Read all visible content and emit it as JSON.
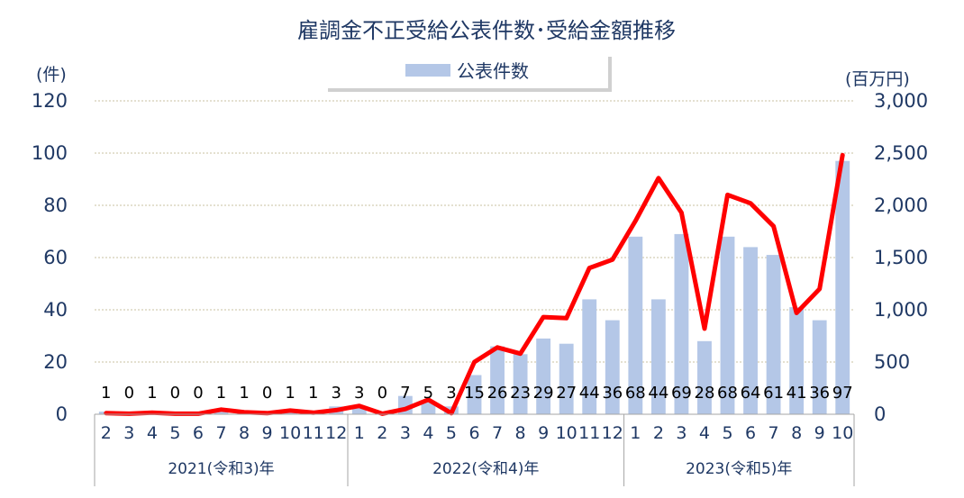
{
  "chart_data": {
    "type": "bar+line",
    "title": "雇調金不正受給公表件数･受給金額推移",
    "left_axis_unit": "(件)",
    "right_axis_unit": "(百万円)",
    "left_ylim": [
      0,
      120
    ],
    "left_ticks": [
      "0",
      "20",
      "40",
      "60",
      "80",
      "100",
      "120"
    ],
    "right_ylim": [
      0,
      3000
    ],
    "right_ticks": [
      "0",
      "500",
      "1,000",
      "1,500",
      "2,000",
      "2,500",
      "3,000"
    ],
    "categories": [
      "2",
      "3",
      "4",
      "5",
      "6",
      "7",
      "8",
      "9",
      "10",
      "11",
      "12",
      "1",
      "2",
      "3",
      "4",
      "5",
      "6",
      "7",
      "8",
      "9",
      "10",
      "11",
      "12",
      "1",
      "2",
      "3",
      "4",
      "5",
      "6",
      "7",
      "8",
      "9",
      "10"
    ],
    "year_groups": [
      {
        "label": "2021(令和3)年",
        "count": 11
      },
      {
        "label": "2022(令和4)年",
        "count": 12
      },
      {
        "label": "2023(令和5)年",
        "count": 10
      }
    ],
    "bar_series": {
      "name": "公表件数",
      "color": "#b4c7e7",
      "values": [
        1,
        0,
        1,
        0,
        0,
        1,
        1,
        0,
        1,
        1,
        3,
        3,
        0,
        7,
        5,
        3,
        15,
        26,
        23,
        29,
        27,
        44,
        36,
        68,
        44,
        69,
        28,
        68,
        64,
        61,
        41,
        36,
        97
      ],
      "data_labels": [
        "1",
        "0",
        "1",
        "0",
        "0",
        "1",
        "1",
        "0",
        "1",
        "1",
        "3",
        "3",
        "0",
        "7",
        "5",
        "3",
        "15",
        "26",
        "23",
        "29",
        "27",
        "44",
        "36",
        "68",
        "44",
        "69",
        "28",
        "68",
        "64",
        "61",
        "41",
        "36",
        "97"
      ]
    },
    "line_series": {
      "color": "#ff0000",
      "values": [
        10,
        5,
        15,
        5,
        5,
        45,
        20,
        10,
        35,
        15,
        40,
        80,
        5,
        50,
        140,
        10,
        500,
        640,
        580,
        930,
        920,
        1400,
        1480,
        1850,
        2260,
        1930,
        820,
        2100,
        2020,
        1800,
        970,
        1200,
        2480
      ]
    },
    "grid": true
  },
  "legend": {
    "label": "公表件数"
  }
}
